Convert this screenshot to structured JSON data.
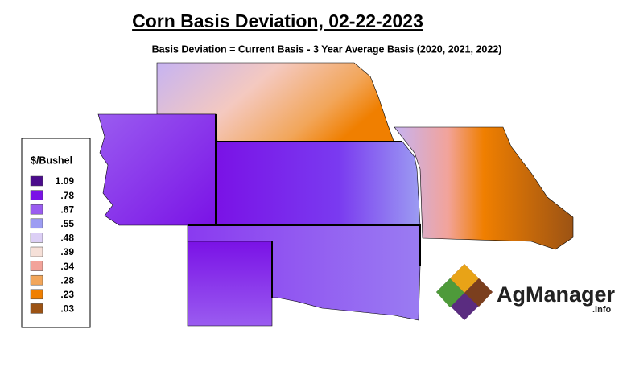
{
  "header": {
    "title": "Corn Basis Deviation, 02-22-2023",
    "subtitle": "Basis Deviation = Current Basis - 3 Year Average Basis (2020, 2021, 2022)"
  },
  "legend": {
    "title": "$/Bushel",
    "items": [
      {
        "label": "1.09",
        "color": "#4b0c8c"
      },
      {
        "label": ".78",
        "color": "#7a12e6"
      },
      {
        "label": ".67",
        "color": "#9a5cf0"
      },
      {
        "label": ".55",
        "color": "#9c9cf2"
      },
      {
        "label": ".48",
        "color": "#dccff5"
      },
      {
        "label": ".39",
        "color": "#f6e0d8"
      },
      {
        "label": ".34",
        "color": "#f2a39a"
      },
      {
        "label": ".28",
        "color": "#f2a65a"
      },
      {
        "label": ".23",
        "color": "#f07f00"
      },
      {
        "label": ".03",
        "color": "#9c5314"
      }
    ]
  },
  "logo": {
    "name": "AgManager",
    "suffix": ".info"
  }
}
